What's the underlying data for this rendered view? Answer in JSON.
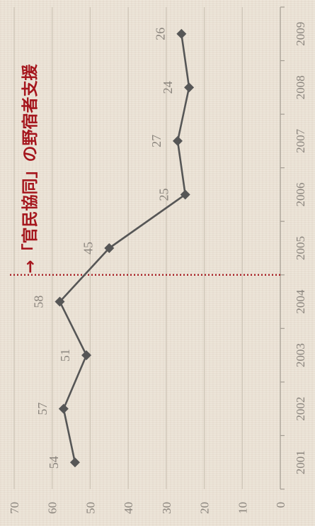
{
  "chart_data": {
    "type": "line",
    "title": "",
    "xlabel": "",
    "ylabel": "",
    "x": [
      2001,
      2002,
      2003,
      2004,
      2005,
      2006,
      2007,
      2008,
      2009
    ],
    "values": [
      54,
      57,
      51,
      58,
      45,
      25,
      27,
      24,
      26
    ],
    "ylim": [
      0,
      70
    ],
    "yticks": [
      0,
      10,
      20,
      30,
      40,
      50,
      60,
      70
    ],
    "grid": true,
    "data_labels": true,
    "annotation": {
      "text": "→「官民協同」の野宿者支援",
      "x": 2004.5
    },
    "colors": {
      "background": "#ebe2d5",
      "line": "#565656",
      "marker": "#565656",
      "grid": "#cdc4b6",
      "axis": "#a39c92",
      "label": "#8a847d",
      "annotation": "#a5161d"
    }
  }
}
